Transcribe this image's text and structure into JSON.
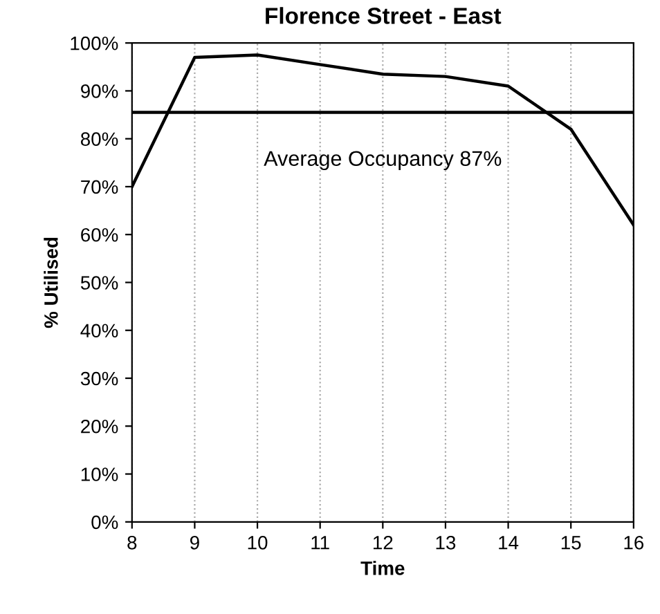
{
  "chart_data": {
    "type": "line",
    "title": "Florence Street - East",
    "xlabel": "Time",
    "ylabel": "% Utilised",
    "x": [
      8,
      9,
      10,
      11,
      12,
      13,
      14,
      15,
      16
    ],
    "series": [
      {
        "color": "#000000",
        "values": [
          70,
          97,
          97.5,
          95.5,
          93.5,
          93,
          91,
          82,
          62
        ]
      }
    ],
    "xlim": [
      8,
      16
    ],
    "xticks": [
      8,
      9,
      10,
      11,
      12,
      13,
      14,
      15,
      16
    ],
    "ylim": [
      0,
      100
    ],
    "yticks": [
      {
        "value": 0,
        "label": "0%"
      },
      {
        "value": 10,
        "label": "10%"
      },
      {
        "value": 20,
        "label": "20%"
      },
      {
        "value": 30,
        "label": "30%"
      },
      {
        "value": 40,
        "label": "40%"
      },
      {
        "value": 50,
        "label": "50%"
      },
      {
        "value": 60,
        "label": "60%"
      },
      {
        "value": 70,
        "label": "70%"
      },
      {
        "value": 80,
        "label": "80%"
      },
      {
        "value": 90,
        "label": "90%"
      },
      {
        "value": 100,
        "label": "100%"
      }
    ],
    "ref_lines": [
      {
        "axis": "y",
        "value": 85.5,
        "label": "Average Occupancy 87%",
        "color": "#000000",
        "line_style": "solid"
      }
    ],
    "grid": "x",
    "marker": "none",
    "line_style": "solid"
  }
}
